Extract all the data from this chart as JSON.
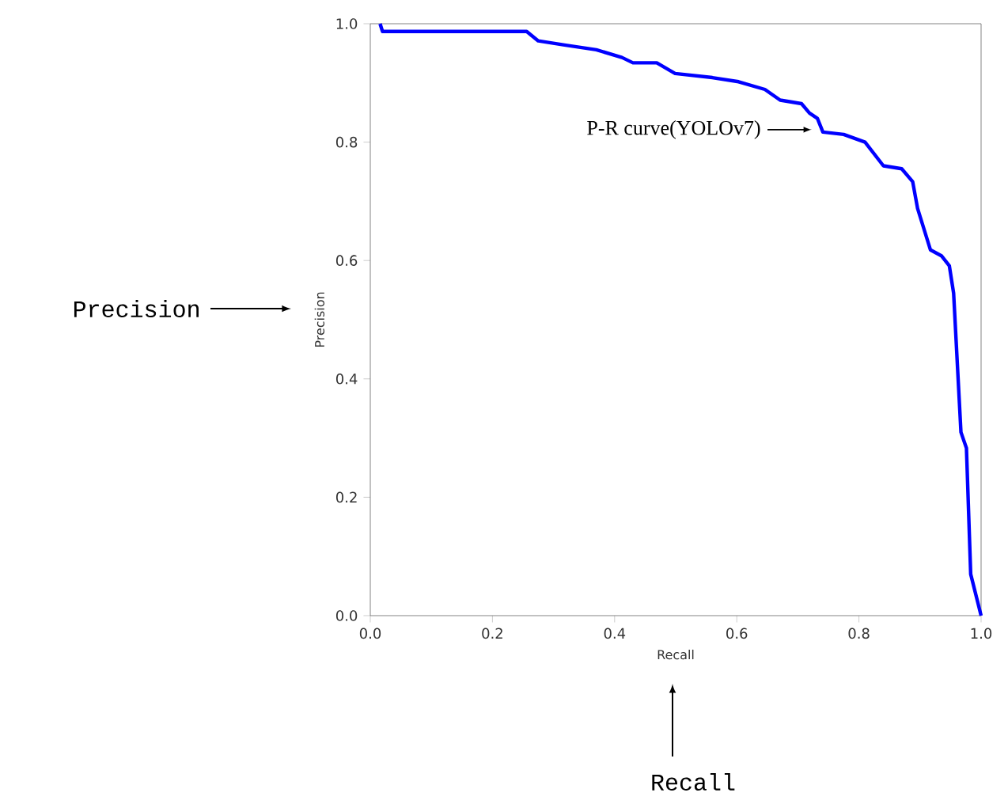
{
  "chart_data": {
    "type": "line",
    "xlabel": "Recall",
    "ylabel": "Precision",
    "xlim": [
      0,
      1
    ],
    "ylim": [
      0,
      1
    ],
    "xticks": [
      {
        "value": 0,
        "label": "0.0"
      },
      0.2,
      0.4,
      0.6,
      0.8,
      {
        "value": 1,
        "label": "1.0"
      }
    ],
    "yticks": [
      {
        "value": 0,
        "label": "0.0"
      },
      0.2,
      0.4,
      0.6,
      0.8,
      {
        "value": 1,
        "label": "1.0"
      }
    ],
    "x": [
      0.016,
      0.02,
      0.256,
      0.275,
      0.318,
      0.37,
      0.412,
      0.43,
      0.469,
      0.499,
      0.56,
      0.603,
      0.646,
      0.671,
      0.706,
      0.719,
      0.732,
      0.741,
      0.775,
      0.81,
      0.84,
      0.87,
      0.888,
      0.896,
      0.917,
      0.935,
      0.948,
      0.955,
      0.967,
      0.976,
      0.983,
      1.0
    ],
    "series": [
      {
        "color": "#0000ff",
        "values": [
          1.0,
          0.987,
          0.987,
          0.971,
          0.964,
          0.956,
          0.943,
          0.934,
          0.934,
          0.916,
          0.909,
          0.902,
          0.889,
          0.871,
          0.865,
          0.849,
          0.84,
          0.817,
          0.813,
          0.8,
          0.76,
          0.755,
          0.733,
          0.688,
          0.618,
          0.608,
          0.591,
          0.545,
          0.31,
          0.283,
          0.07,
          0.0
        ]
      }
    ],
    "marker": "none",
    "line_style": "solid",
    "grid": false,
    "annotations": [
      {
        "text": "P-R curve(YOLOv7)",
        "x": 0.728,
        "y": 0.821
      },
      "Precision",
      "Recall"
    ]
  }
}
